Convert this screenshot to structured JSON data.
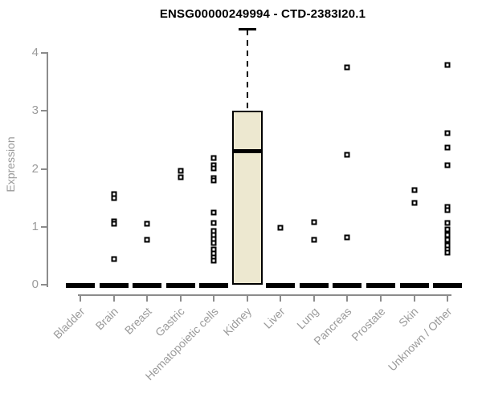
{
  "chart_data": {
    "type": "boxplot",
    "title": "ENSG00000249994 - CTD-2383I20.1",
    "ylabel": "Expression",
    "ylim": [
      0,
      4.5
    ],
    "yticks": [
      "0",
      "1",
      "2",
      "3",
      "4"
    ],
    "grid": false,
    "legend": false,
    "colors": {
      "box_fill": "#EDE8D0",
      "box_border": "#000000",
      "axis_line": "#8C8C8C",
      "axis_text": "#9A9A9A",
      "title_text": "#000000"
    },
    "categories": [
      "Bladder",
      "Brain",
      "Breast",
      "Gastric",
      "Hematopoietic cells",
      "Kidney",
      "Liver",
      "Lung",
      "Pancreas",
      "Prostate",
      "Skin",
      "Unknown / Other"
    ],
    "series": [
      {
        "category": "Bladder",
        "q1": 0,
        "median": 0,
        "q3": 0,
        "whisker_low": 0,
        "whisker_high": 0,
        "points": []
      },
      {
        "category": "Brain",
        "q1": 0,
        "median": 0,
        "q3": 0,
        "whisker_low": 0,
        "whisker_high": 0,
        "points": [
          1.56,
          1.5,
          1.09,
          1.05,
          0.44
        ]
      },
      {
        "category": "Breast",
        "q1": 0,
        "median": 0,
        "q3": 0,
        "whisker_low": 0,
        "whisker_high": 0,
        "points": [
          1.05,
          0.78
        ]
      },
      {
        "category": "Gastric",
        "q1": 0,
        "median": 0,
        "q3": 0,
        "whisker_low": 0,
        "whisker_high": 0,
        "points": [
          1.97,
          1.86
        ]
      },
      {
        "category": "Hematopoietic cells",
        "q1": 0,
        "median": 0,
        "q3": 0,
        "whisker_low": 0,
        "whisker_high": 0,
        "points": [
          2.19,
          2.06,
          2.01,
          1.84,
          1.8,
          1.24,
          1.06,
          0.93,
          0.86,
          0.79,
          0.72,
          0.61,
          0.54,
          0.47,
          0.42
        ]
      },
      {
        "category": "Kidney",
        "q1": 0,
        "median": 2.3,
        "q3": 3.0,
        "whisker_low": 0,
        "whisker_high": 4.4,
        "points": []
      },
      {
        "category": "Liver",
        "q1": 0,
        "median": 0,
        "q3": 0,
        "whisker_low": 0,
        "whisker_high": 0,
        "points": [
          0.98
        ]
      },
      {
        "category": "Lung",
        "q1": 0,
        "median": 0,
        "q3": 0,
        "whisker_low": 0,
        "whisker_high": 0,
        "points": [
          1.08,
          0.78
        ]
      },
      {
        "category": "Pancreas",
        "q1": 0,
        "median": 0,
        "q3": 0,
        "whisker_low": 0,
        "whisker_high": 0,
        "points": [
          3.75,
          2.24,
          0.82
        ]
      },
      {
        "category": "Prostate",
        "q1": 0,
        "median": 0,
        "q3": 0,
        "whisker_low": 0,
        "whisker_high": 0,
        "points": []
      },
      {
        "category": "Skin",
        "q1": 0,
        "median": 0,
        "q3": 0,
        "whisker_low": 0,
        "whisker_high": 0,
        "points": [
          1.63,
          1.41
        ]
      },
      {
        "category": "Unknown / Other",
        "q1": 0,
        "median": 0,
        "q3": 0,
        "whisker_low": 0,
        "whisker_high": 0,
        "points": [
          3.79,
          2.62,
          2.37,
          2.06,
          1.34,
          1.29,
          1.07,
          0.96,
          0.86,
          0.78,
          0.68,
          0.61,
          0.55
        ]
      }
    ]
  }
}
